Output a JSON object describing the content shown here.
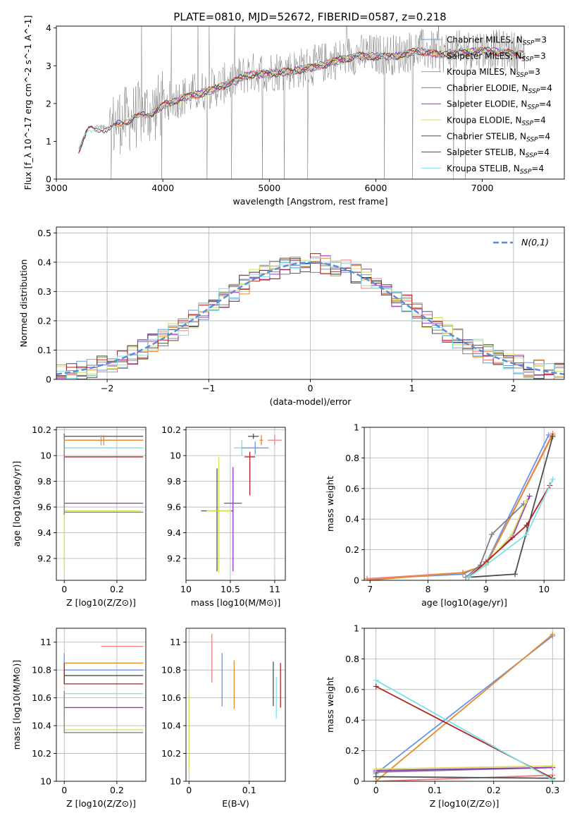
{
  "figure": {
    "title": "PLATE=0810, MJD=52672, FIBERID=0587, z=0.218"
  },
  "colors": {
    "chabrier_miles": "#6495ED",
    "salpeter_miles": "#F08080",
    "kroupa_miles": "#E88A2E",
    "chabrier_elodie": "#808080",
    "salpeter_elodie": "#9932CC",
    "kroupa_elodie": "#D4E157",
    "chabrier_stelib": "#4D4D4D",
    "salpeter_stelib": "#B22222",
    "kroupa_stelib": "#80DEEA",
    "normal": "#5B8DD6"
  },
  "chart_data": [
    {
      "id": "spectrum",
      "type": "line",
      "xlabel": "wavelength [Angstrom, rest frame]",
      "ylabel": "Flux [f_λ 10^-17 erg cm^-2 s^-1 A^-1]",
      "xlim": [
        3000,
        7770
      ],
      "ylim": [
        0,
        4.05
      ],
      "xticks": [
        3000,
        4000,
        5000,
        6000,
        7000
      ],
      "yticks": [
        0,
        1,
        2,
        3,
        4
      ],
      "grid": false,
      "legend_position": "top-right",
      "data_envelope": {
        "wavelength": [
          3210,
          3300,
          3400,
          3500,
          3600,
          3700,
          3800,
          3900,
          4000,
          4200,
          4400,
          4600,
          4800,
          5000,
          5200,
          5400,
          5600,
          5800,
          6000,
          6200,
          6400,
          6600,
          6800,
          7000,
          7200,
          7400
        ],
        "flux": [
          0.8,
          1.35,
          1.4,
          1.35,
          1.55,
          1.6,
          1.75,
          1.8,
          2.0,
          2.2,
          2.35,
          2.55,
          2.8,
          2.85,
          2.9,
          3.0,
          3.15,
          3.3,
          3.3,
          3.3,
          3.45,
          3.35,
          3.4,
          3.45,
          3.4,
          3.35
        ]
      },
      "series": [
        {
          "name": "Chabrier MILES, N_SSP=3",
          "color_key": "chabrier_miles",
          "x_start": 3550
        },
        {
          "name": "Salpeter MILES, N_SSP=3",
          "color_key": "salpeter_miles",
          "x_start": 3550
        },
        {
          "name": "Kroupa MILES, N_SSP=3",
          "color_key": "kroupa_miles",
          "x_start": 3550
        },
        {
          "name": "Chabrier ELODIE, N_SSP=4",
          "color_key": "chabrier_elodie",
          "x_start": 3900
        },
        {
          "name": "Salpeter ELODIE, N_SSP=4",
          "color_key": "salpeter_elodie",
          "x_start": 3900
        },
        {
          "name": "Kroupa ELODIE, N_SSP=4",
          "color_key": "kroupa_elodie",
          "x_start": 3900
        },
        {
          "name": "Chabrier STELIB, N_SSP=4",
          "color_key": "chabrier_stelib",
          "x_start": 3210
        },
        {
          "name": "Salpeter STELIB, N_SSP=4",
          "color_key": "salpeter_stelib",
          "x_start": 3210
        },
        {
          "name": "Kroupa STELIB, N_SSP=4",
          "color_key": "kroupa_stelib",
          "x_start": 3210
        }
      ]
    },
    {
      "id": "residuals",
      "type": "line",
      "xlabel": "(data-model)/error",
      "ylabel": "Normed distribution",
      "xlim": [
        -2.5,
        2.5
      ],
      "ylim": [
        0,
        0.52
      ],
      "xticks": [
        -2,
        -1,
        0,
        1,
        2
      ],
      "yticks": [
        0.0,
        0.1,
        0.2,
        0.3,
        0.4,
        0.5
      ],
      "grid": true,
      "legend_position": "top-right",
      "normal_curve": {
        "name": "N(0,1)",
        "mean": 0,
        "sigma": 1
      },
      "histogram_bin_edges": [
        -2.5,
        -2.4,
        -2.3,
        -2.2,
        -2.1,
        -2.0,
        -1.9,
        -1.8,
        -1.7,
        -1.6,
        -1.5,
        -1.4,
        -1.3,
        -1.2,
        -1.1,
        -1.0,
        -0.9,
        -0.8,
        -0.7,
        -0.6,
        -0.5,
        -0.4,
        -0.3,
        -0.2,
        -0.1,
        0.0,
        0.1,
        0.2,
        0.3,
        0.4,
        0.5,
        0.6,
        0.7,
        0.8,
        0.9,
        1.0,
        1.1,
        1.2,
        1.3,
        1.4,
        1.5,
        1.6,
        1.7,
        1.8,
        1.9,
        2.0,
        2.1,
        2.2,
        2.3,
        2.4,
        2.5
      ]
    },
    {
      "id": "age-vs-Z",
      "type": "scatter",
      "xlabel": "Z [log10(Z/Z⊙)]",
      "ylabel": "age [log10(age/yr)]",
      "xlim": [
        -0.03,
        0.31
      ],
      "ylim": [
        9.03,
        10.22
      ],
      "xticks": [
        0.0,
        0.2
      ],
      "yticks": [
        9.2,
        9.4,
        9.6,
        9.8,
        10.0,
        10.2
      ],
      "grid": true,
      "points": [
        {
          "color_key": "chabrier_stelib",
          "x": 0.0,
          "xerr": [
            0.0,
            0.3
          ],
          "y": 10.15,
          "yerr": [
            0.02,
            0.02
          ]
        },
        {
          "color_key": "salpeter_miles",
          "x": 0.14,
          "xerr": [
            0.14,
            0.16
          ],
          "y": 10.12,
          "yerr": [
            0.04,
            0.04
          ]
        },
        {
          "color_key": "kroupa_miles",
          "x": 0.15,
          "xerr": [
            0.15,
            0.15
          ],
          "y": 10.12,
          "yerr": [
            0.04,
            0.04
          ]
        },
        {
          "color_key": "kroupa_stelib",
          "x": 0.0,
          "xerr": [
            0.0,
            0.3
          ],
          "y": 10.06,
          "yerr": [
            0.06,
            0.06
          ]
        },
        {
          "color_key": "salpeter_stelib",
          "x": 0.0,
          "xerr": [
            0.0,
            0.3
          ],
          "y": 9.99,
          "yerr": [
            0.3,
            0.04
          ]
        },
        {
          "color_key": "salpeter_elodie",
          "x": 0.0,
          "xerr": [
            0.0,
            0.3
          ],
          "y": 9.63,
          "yerr": [
            0.02,
            0.02
          ]
        },
        {
          "color_key": "kroupa_elodie",
          "x": 0.0,
          "xerr": [
            0.0,
            0.29
          ],
          "y": 9.57,
          "yerr": [
            0.47,
            0.38
          ]
        },
        {
          "color_key": "chabrier_elodie",
          "x": 0.0,
          "xerr": [
            0.0,
            0.3
          ],
          "y": 9.56,
          "yerr": [
            0.02,
            0.6
          ]
        }
      ]
    },
    {
      "id": "age-vs-mass",
      "type": "scatter",
      "xlabel": "mass [log10(M/M⊙)]",
      "ylabel": "",
      "xlim": [
        10.0,
        11.12
      ],
      "ylim": [
        9.03,
        10.22
      ],
      "xticks": [
        10.0,
        10.5,
        11.0
      ],
      "yticks": [
        9.2,
        9.4,
        9.6,
        9.8,
        10.0,
        10.2
      ],
      "grid": true,
      "points": [
        {
          "color_key": "chabrier_stelib",
          "x": 10.76,
          "xerr": [
            0.06,
            0.06
          ],
          "y": 10.15,
          "yerr": [
            0.02,
            0.02
          ]
        },
        {
          "color_key": "kroupa_miles",
          "x": 10.85,
          "xerr": [
            0.02,
            0.02
          ],
          "y": 10.12,
          "yerr": [
            0.04,
            0.04
          ]
        },
        {
          "color_key": "salpeter_miles",
          "x": 11.0,
          "xerr": [
            0.08,
            0.08
          ],
          "y": 10.12,
          "yerr": [
            0.04,
            0.04
          ]
        },
        {
          "color_key": "kroupa_stelib",
          "x": 10.63,
          "xerr": [
            0.09,
            0.09
          ],
          "y": 10.06,
          "yerr": [
            0.06,
            0.06
          ]
        },
        {
          "color_key": "chabrier_miles",
          "x": 10.78,
          "xerr": [
            0.15,
            0.15
          ],
          "y": 10.06,
          "yerr": [
            0.05,
            0.05
          ]
        },
        {
          "color_key": "salpeter_stelib",
          "x": 10.72,
          "xerr": [
            0.06,
            0.06
          ],
          "y": 9.99,
          "yerr": [
            0.3,
            0.04
          ]
        },
        {
          "color_key": "salpeter_elodie",
          "x": 10.53,
          "xerr": [
            0.1,
            0.1
          ],
          "y": 9.63,
          "yerr": [
            0.53,
            0.28
          ]
        },
        {
          "color_key": "chabrier_stelib",
          "x": 10.35,
          "xerr": [
            0.18,
            0.18
          ],
          "y": 9.57,
          "yerr": [
            0.47,
            0.33
          ]
        },
        {
          "color_key": "kroupa_elodie",
          "x": 10.37,
          "xerr": [
            0.14,
            0.14
          ],
          "y": 9.57,
          "yerr": [
            0.48,
            0.42
          ]
        }
      ]
    },
    {
      "id": "mass-weight-vs-age",
      "type": "line",
      "xlabel": "age [log10(age/yr)]",
      "ylabel": "mass weight",
      "xlim": [
        6.9,
        10.35
      ],
      "ylim": [
        0,
        1.0
      ],
      "xticks": [
        7,
        8,
        9,
        10
      ],
      "yticks": [
        0.0,
        0.2,
        0.4,
        0.6,
        0.8,
        1.0
      ],
      "grid": true,
      "series": [
        {
          "color_key": "chabrier_miles",
          "x": [
            6.95,
            8.6,
            9.0,
            10.08
          ],
          "y": [
            0.01,
            0.04,
            0.11,
            0.95
          ]
        },
        {
          "color_key": "salpeter_miles",
          "x": [
            6.95,
            8.6,
            9.0,
            10.15
          ],
          "y": [
            0.01,
            0.05,
            0.1,
            0.96
          ]
        },
        {
          "color_key": "kroupa_miles",
          "x": [
            6.95,
            8.6,
            9.0,
            10.15
          ],
          "y": [
            0.0,
            0.05,
            0.1,
            0.95
          ]
        },
        {
          "color_key": "chabrier_elodie",
          "x": [
            8.65,
            8.9,
            9.1,
            9.65
          ],
          "y": [
            0.02,
            0.1,
            0.3,
            0.5
          ]
        },
        {
          "color_key": "salpeter_elodie",
          "x": [
            8.7,
            9.0,
            9.45,
            9.75
          ],
          "y": [
            0.02,
            0.12,
            0.28,
            0.55
          ]
        },
        {
          "color_key": "kroupa_elodie",
          "x": [
            8.7,
            9.0,
            9.45,
            9.7
          ],
          "y": [
            0.02,
            0.11,
            0.3,
            0.52
          ]
        },
        {
          "color_key": "chabrier_stelib",
          "x": [
            8.7,
            9.5,
            10.15
          ],
          "y": [
            0.02,
            0.04,
            0.94
          ]
        },
        {
          "color_key": "salpeter_stelib",
          "x": [
            8.7,
            9.0,
            9.7,
            10.1
          ],
          "y": [
            0.02,
            0.12,
            0.36,
            0.62
          ]
        },
        {
          "color_key": "kroupa_stelib",
          "x": [
            8.7,
            9.0,
            9.7,
            10.15
          ],
          "y": [
            0.02,
            0.1,
            0.3,
            0.66
          ]
        }
      ]
    },
    {
      "id": "mass-vs-Z",
      "type": "scatter",
      "xlabel": "Z [log10(Z/Z⊙)]",
      "ylabel": "mass [log10(M/M⊙)]",
      "xlim": [
        -0.03,
        0.31
      ],
      "ylim": [
        10.0,
        11.1
      ],
      "xticks": [
        0.0,
        0.2
      ],
      "yticks": [
        10.0,
        10.2,
        10.4,
        10.6,
        10.8,
        11.0
      ],
      "grid": true,
      "points": [
        {
          "color_key": "salpeter_miles",
          "x": 0.15,
          "xerr": [
            0.01,
            0.15
          ],
          "y": 10.97,
          "yerr": [
            0.0,
            0.0
          ]
        },
        {
          "color_key": "kroupa_miles",
          "x": 0.0,
          "xerr": [
            0.0,
            0.3
          ],
          "y": 10.85,
          "yerr": [
            0.0,
            0.0
          ]
        },
        {
          "color_key": "chabrier_miles",
          "x": 0.0,
          "xerr": [
            0.0,
            0.3
          ],
          "y": 10.8,
          "yerr": [
            0.0,
            0.12
          ]
        },
        {
          "color_key": "chabrier_stelib",
          "x": 0.0,
          "xerr": [
            0.0,
            0.3
          ],
          "y": 10.76,
          "yerr": [
            0.06,
            0.06
          ]
        },
        {
          "color_key": "salpeter_stelib",
          "x": 0.0,
          "xerr": [
            0.0,
            0.3
          ],
          "y": 10.7,
          "yerr": [
            0.0,
            0.15
          ]
        },
        {
          "color_key": "kroupa_stelib",
          "x": 0.0,
          "xerr": [
            0.0,
            0.3
          ],
          "y": 10.63,
          "yerr": [
            0.18,
            0.0
          ]
        },
        {
          "color_key": "salpeter_elodie",
          "x": 0.0,
          "xerr": [
            0.0,
            0.3
          ],
          "y": 10.53,
          "yerr": [
            0.0,
            0.0
          ]
        },
        {
          "color_key": "kroupa_elodie",
          "x": 0.0,
          "xerr": [
            0.0,
            0.3
          ],
          "y": 10.37,
          "yerr": [
            0.0,
            0.0
          ]
        },
        {
          "color_key": "chabrier_elodie",
          "x": 0.0,
          "xerr": [
            0.0,
            0.3
          ],
          "y": 10.35,
          "yerr": [
            0.0,
            0.3
          ]
        }
      ]
    },
    {
      "id": "mass-vs-ebv",
      "type": "scatter",
      "xlabel": "E(B-V)",
      "ylabel": "",
      "xlim": [
        -0.005,
        0.16
      ],
      "ylim": [
        10.0,
        11.1
      ],
      "xticks": [
        0.0,
        0.1
      ],
      "yticks": [
        10.0,
        10.2,
        10.4,
        10.6,
        10.8,
        11.0
      ],
      "grid": true,
      "points": [
        {
          "color_key": "kroupa_elodie",
          "x": 0.0,
          "y": 10.37,
          "yerr": [
            0.3,
            0.27
          ]
        },
        {
          "color_key": "salpeter_miles",
          "x": 0.038,
          "y": 10.88,
          "yerr": [
            0.17,
            0.18
          ]
        },
        {
          "color_key": "chabrier_miles",
          "x": 0.055,
          "y": 10.73,
          "yerr": [
            0.19,
            0.19
          ]
        },
        {
          "color_key": "kroupa_miles",
          "x": 0.075,
          "y": 10.7,
          "yerr": [
            0.18,
            0.17
          ]
        },
        {
          "color_key": "chabrier_stelib",
          "x": 0.14,
          "y": 10.7,
          "yerr": [
            0.16,
            0.16
          ]
        },
        {
          "color_key": "kroupa_stelib",
          "x": 0.145,
          "y": 10.6,
          "yerr": [
            0.15,
            0.15
          ]
        },
        {
          "color_key": "salpeter_stelib",
          "x": 0.152,
          "y": 10.69,
          "yerr": [
            0.16,
            0.16
          ]
        }
      ]
    },
    {
      "id": "mass-weight-vs-Z",
      "type": "line",
      "xlabel": "Z [log10(Z/Z⊙)]",
      "ylabel": "mass weight",
      "xlim": [
        -0.02,
        0.32
      ],
      "ylim": [
        0,
        1.0
      ],
      "xticks": [
        0.0,
        0.1,
        0.2,
        0.3
      ],
      "yticks": [
        0.0,
        0.2,
        0.4,
        0.6,
        0.8,
        1.0
      ],
      "grid": true,
      "series": [
        {
          "color_key": "chabrier_miles",
          "x": [
            0.0,
            0.3
          ],
          "y": [
            0.05,
            0.95
          ]
        },
        {
          "color_key": "salpeter_miles",
          "x": [
            0.0,
            0.3
          ],
          "y": [
            0.0,
            0.04
          ]
        },
        {
          "color_key": "kroupa_miles",
          "x": [
            0.0,
            0.3
          ],
          "y": [
            0.0,
            0.96
          ]
        },
        {
          "color_key": "chabrier_elodie",
          "x": [
            0.0,
            0.3
          ],
          "y": [
            0.06,
            0.09
          ]
        },
        {
          "color_key": "salpeter_elodie",
          "x": [
            0.0,
            0.3
          ],
          "y": [
            0.07,
            0.09
          ]
        },
        {
          "color_key": "kroupa_elodie",
          "x": [
            0.0,
            0.3
          ],
          "y": [
            0.08,
            0.1
          ]
        },
        {
          "color_key": "chabrier_stelib",
          "x": [
            0.0,
            0.3
          ],
          "y": [
            0.03,
            0.02
          ]
        },
        {
          "color_key": "salpeter_stelib",
          "x": [
            0.0,
            0.3
          ],
          "y": [
            0.62,
            0.02
          ]
        },
        {
          "color_key": "kroupa_stelib",
          "x": [
            0.0,
            0.3
          ],
          "y": [
            0.66,
            0.01
          ]
        }
      ]
    }
  ]
}
